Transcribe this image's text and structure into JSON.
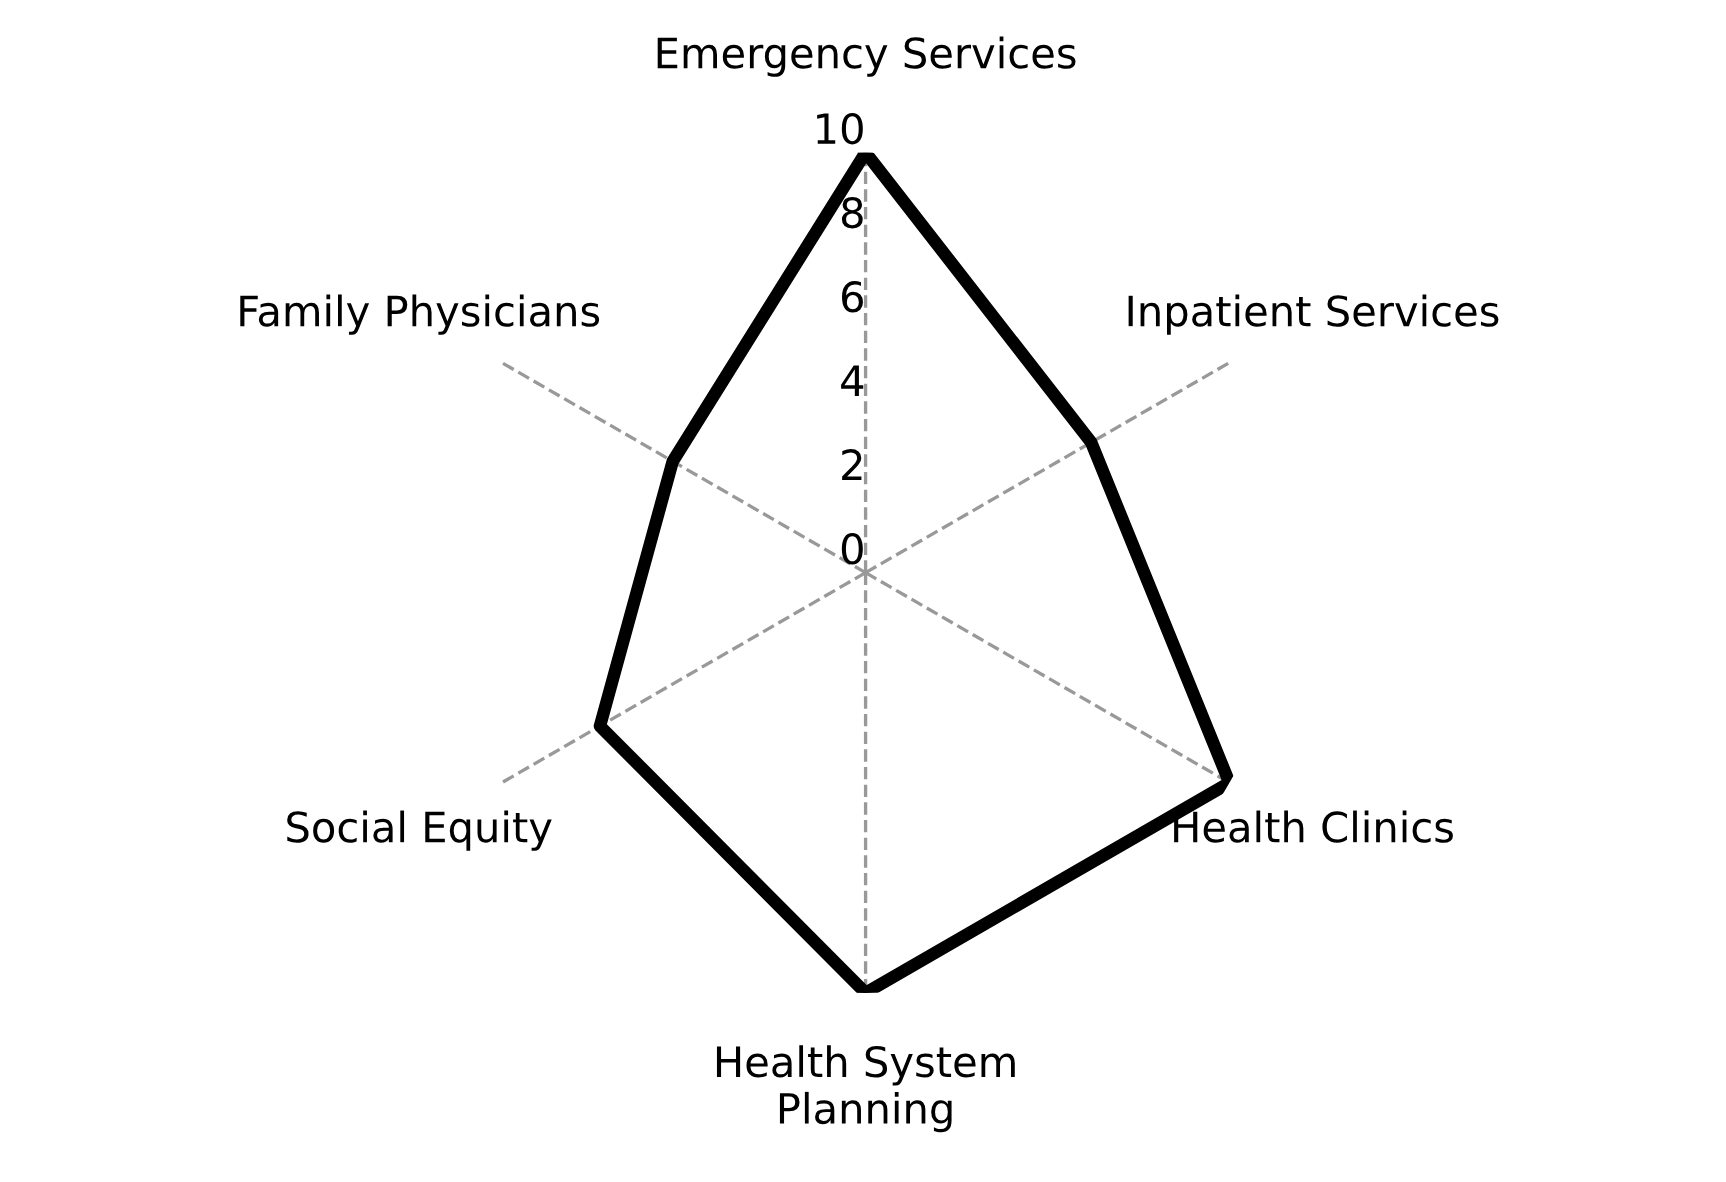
{
  "chart_data": {
    "type": "radar",
    "categories": [
      "Emergency Services",
      "Inpatient Services",
      "Health Clinics",
      "Health System\nPlanning",
      "Social Equity",
      "Family Physicians"
    ],
    "series": [
      {
        "color": "#000000",
        "values": [
          10,
          6.2,
          10,
          10,
          7.3,
          5.3
        ]
      }
    ],
    "ylim": [
      0,
      10
    ],
    "yticks": [
      0,
      2,
      4,
      6,
      8,
      10
    ],
    "grid": "x",
    "marker": "none",
    "line_style": "solid"
  }
}
